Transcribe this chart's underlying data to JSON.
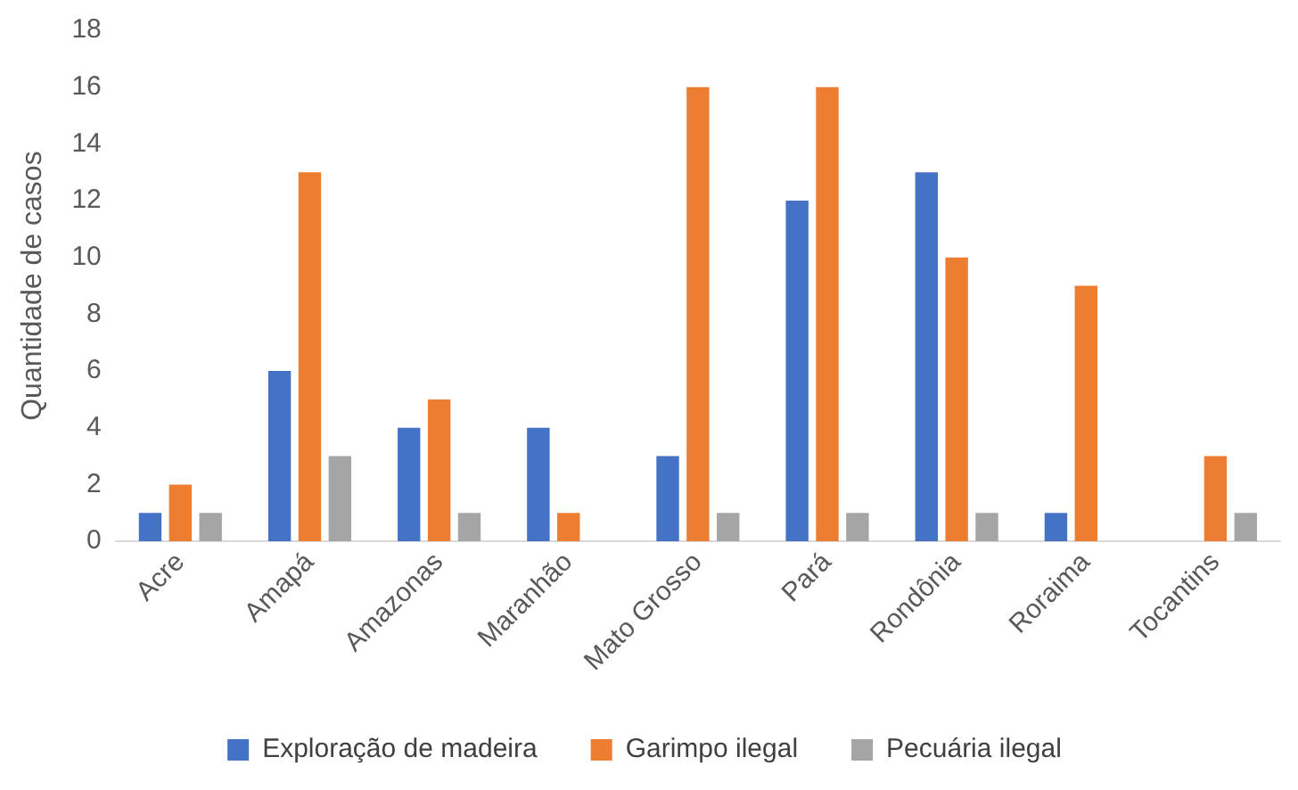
{
  "chart_data": {
    "type": "bar",
    "ylabel": "Quantidade de casos",
    "categories": [
      "Acre",
      "Amapá",
      "Amazonas",
      "Maranhão",
      "Mato Grosso",
      "Pará",
      "Rondônia",
      "Roraima",
      "Tocantins"
    ],
    "series": [
      {
        "name": "Exploração de madeira",
        "color": "#4472c4",
        "values": [
          1,
          6,
          4,
          4,
          3,
          12,
          13,
          1,
          0
        ]
      },
      {
        "name": "Garimpo ilegal",
        "color": "#ed7d31",
        "values": [
          2,
          13,
          5,
          1,
          16,
          16,
          10,
          9,
          3
        ]
      },
      {
        "name": "Pecuária ilegal",
        "color": "#a5a5a5",
        "values": [
          1,
          3,
          1,
          0,
          1,
          1,
          1,
          0,
          1
        ]
      }
    ],
    "ylim": [
      0,
      18
    ],
    "yticks": [
      0,
      2,
      4,
      6,
      8,
      10,
      12,
      14,
      16,
      18
    ],
    "grid": false,
    "legend": "bottom"
  }
}
